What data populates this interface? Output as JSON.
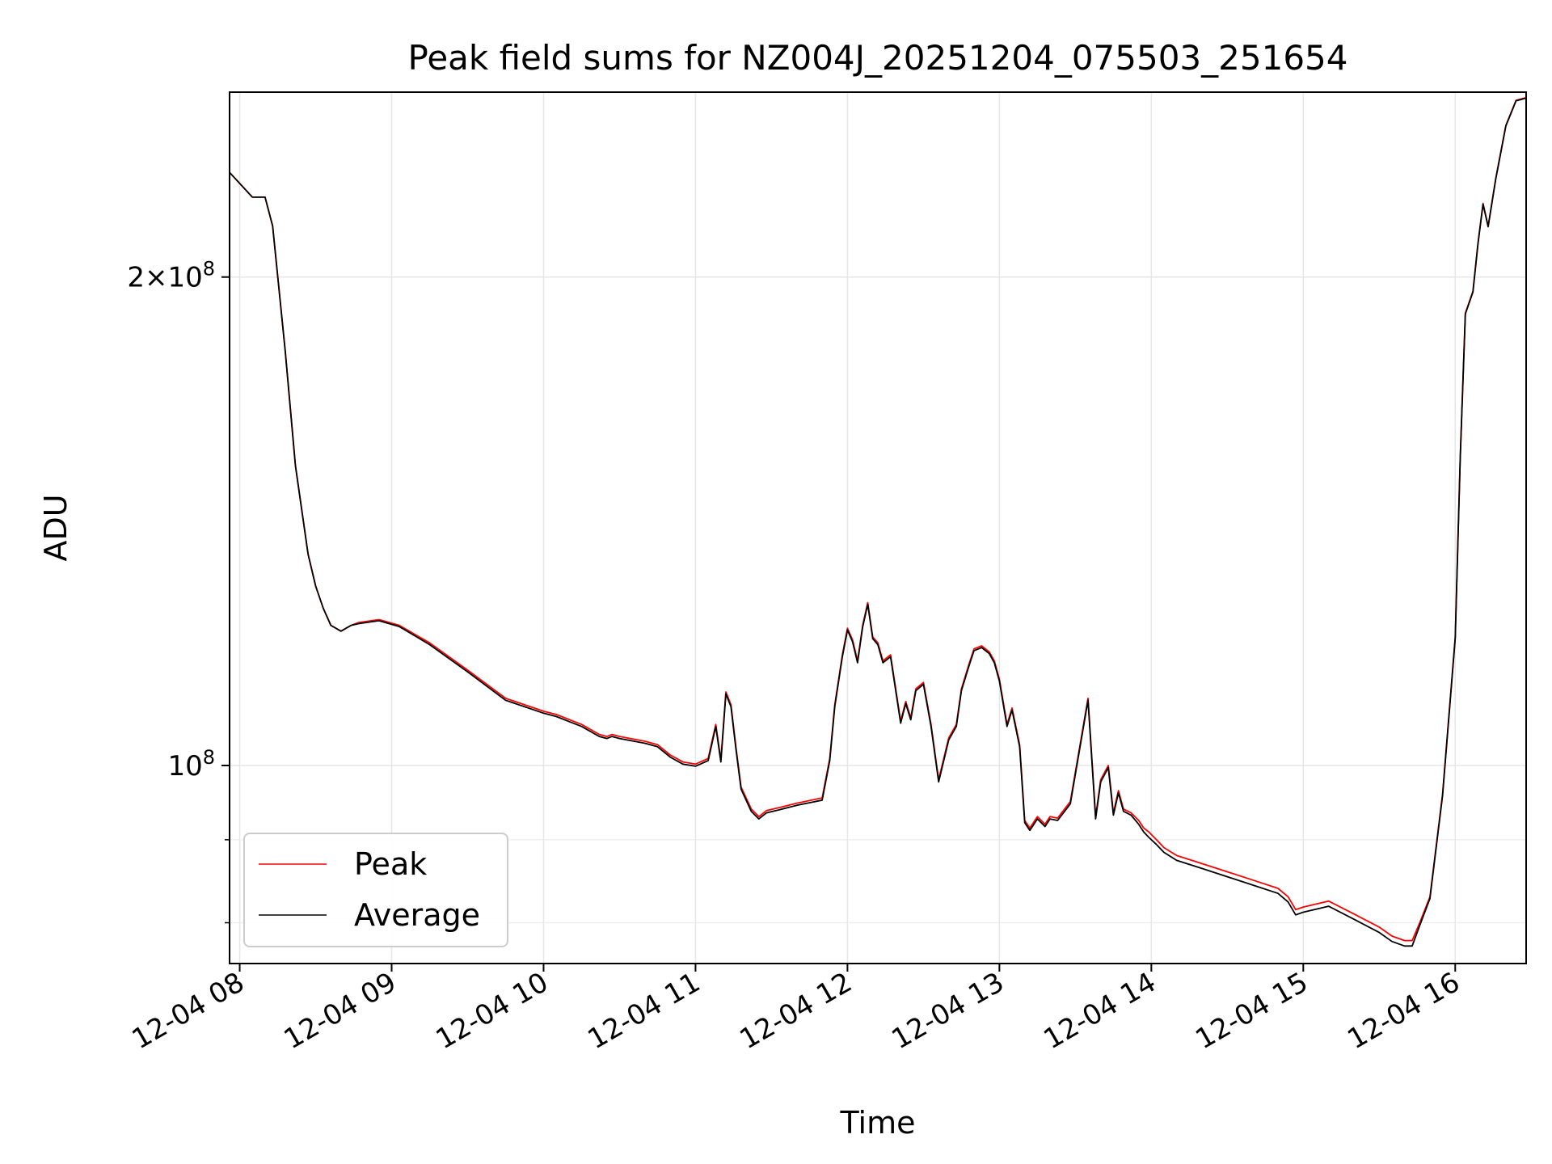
{
  "chart_data": {
    "type": "line",
    "title": "Peak field sums for NZ004J_20251204_075503_251654",
    "xlabel": "Time",
    "ylabel": "ADU",
    "yscale": "log",
    "ylim": [
      75500000,
      260000000
    ],
    "xlim": [
      "2025-12-04T07:56:00",
      "2025-12-04T16:28:00"
    ],
    "x_ticks": [
      "2025-12-04T08:00",
      "2025-12-04T09:00",
      "2025-12-04T10:00",
      "2025-12-04T11:00",
      "2025-12-04T12:00",
      "2025-12-04T13:00",
      "2025-12-04T14:00",
      "2025-12-04T15:00",
      "2025-12-04T16:00"
    ],
    "x_tick_labels": [
      "12-04 08",
      "12-04 09",
      "12-04 10",
      "12-04 11",
      "12-04 12",
      "12-04 13",
      "12-04 14",
      "12-04 15",
      "12-04 16"
    ],
    "y_ticks": [
      100000000,
      200000000
    ],
    "y_tick_labels": [
      "10^8",
      "2×10^8"
    ],
    "y_minor_ticks": [
      80000000,
      90000000
    ],
    "grid": true,
    "legend_position": "lower-left",
    "x": [
      "2025-12-04T07:56",
      "2025-12-04T08:05",
      "2025-12-04T08:10",
      "2025-12-04T08:13",
      "2025-12-04T08:18",
      "2025-12-04T08:22",
      "2025-12-04T08:27",
      "2025-12-04T08:30",
      "2025-12-04T08:33",
      "2025-12-04T08:36",
      "2025-12-04T08:40",
      "2025-12-04T08:44",
      "2025-12-04T08:47",
      "2025-12-04T08:55",
      "2025-12-04T09:03",
      "2025-12-04T09:15",
      "2025-12-04T09:30",
      "2025-12-04T09:45",
      "2025-12-04T10:00",
      "2025-12-04T10:05",
      "2025-12-04T10:15",
      "2025-12-04T10:22",
      "2025-12-04T10:25",
      "2025-12-04T10:27",
      "2025-12-04T10:30",
      "2025-12-04T10:40",
      "2025-12-04T10:45",
      "2025-12-04T10:50",
      "2025-12-04T10:55",
      "2025-12-04T11:00",
      "2025-12-04T11:05",
      "2025-12-04T11:08",
      "2025-12-04T11:10",
      "2025-12-04T11:12",
      "2025-12-04T11:14",
      "2025-12-04T11:16",
      "2025-12-04T11:18",
      "2025-12-04T11:22",
      "2025-12-04T11:25",
      "2025-12-04T11:28",
      "2025-12-04T11:33",
      "2025-12-04T11:40",
      "2025-12-04T11:50",
      "2025-12-04T11:53",
      "2025-12-04T11:55",
      "2025-12-04T11:58",
      "2025-12-04T12:00",
      "2025-12-04T12:02",
      "2025-12-04T12:04",
      "2025-12-04T12:06",
      "2025-12-04T12:08",
      "2025-12-04T12:10",
      "2025-12-04T12:12",
      "2025-12-04T12:14",
      "2025-12-04T12:17",
      "2025-12-04T12:21",
      "2025-12-04T12:23",
      "2025-12-04T12:25",
      "2025-12-04T12:27",
      "2025-12-04T12:30",
      "2025-12-04T12:33",
      "2025-12-04T12:36",
      "2025-12-04T12:40",
      "2025-12-04T12:43",
      "2025-12-04T12:45",
      "2025-12-04T12:48",
      "2025-12-04T12:50",
      "2025-12-04T12:53",
      "2025-12-04T12:56",
      "2025-12-04T12:58",
      "2025-12-04T13:00",
      "2025-12-04T13:03",
      "2025-12-04T13:05",
      "2025-12-04T13:08",
      "2025-12-04T13:10",
      "2025-12-04T13:12",
      "2025-12-04T13:15",
      "2025-12-04T13:18",
      "2025-12-04T13:20",
      "2025-12-04T13:23",
      "2025-12-04T13:28",
      "2025-12-04T13:35",
      "2025-12-04T13:38",
      "2025-12-04T13:40",
      "2025-12-04T13:43",
      "2025-12-04T13:45",
      "2025-12-04T13:47",
      "2025-12-04T13:49",
      "2025-12-04T13:52",
      "2025-12-04T13:55",
      "2025-12-04T13:57",
      "2025-12-04T13:59",
      "2025-12-04T14:02",
      "2025-12-04T14:05",
      "2025-12-04T14:10",
      "2025-12-04T14:20",
      "2025-12-04T14:30",
      "2025-12-04T14:40",
      "2025-12-04T14:50",
      "2025-12-04T14:54",
      "2025-12-04T14:57",
      "2025-12-04T15:00",
      "2025-12-04T15:10",
      "2025-12-04T15:20",
      "2025-12-04T15:30",
      "2025-12-04T15:35",
      "2025-12-04T15:40",
      "2025-12-04T15:43",
      "2025-12-04T15:46",
      "2025-12-04T15:50",
      "2025-12-04T15:55",
      "2025-12-04T16:00",
      "2025-12-04T16:02",
      "2025-12-04T16:04",
      "2025-12-04T16:07",
      "2025-12-04T16:09",
      "2025-12-04T16:11",
      "2025-12-04T16:13",
      "2025-12-04T16:16",
      "2025-12-04T16:20",
      "2025-12-04T16:24",
      "2025-12-04T16:28"
    ],
    "series": [
      {
        "name": "Peak",
        "color": "#ff0000",
        "values": [
          232000000,
          224000000,
          224000000,
          215000000,
          180000000,
          153000000,
          135000000,
          129000000,
          125000000,
          122000000,
          121000000,
          122000000,
          122500000,
          123000000,
          122000000,
          119000000,
          114500000,
          110000000,
          108000000,
          107500000,
          106000000,
          104500000,
          104200000,
          104500000,
          104200000,
          103500000,
          103000000,
          101500000,
          100500000,
          100200000,
          101000000,
          106000000,
          100800000,
          111000000,
          109000000,
          102500000,
          97000000,
          94000000,
          93000000,
          93800000,
          94200000,
          94800000,
          95500000,
          101000000,
          109000000,
          117000000,
          121500000,
          119500000,
          116000000,
          122000000,
          126000000,
          120000000,
          119000000,
          116000000,
          117000000,
          106500000,
          109500000,
          107000000,
          111500000,
          112500000,
          106000000,
          98000000,
          104000000,
          106000000,
          111500000,
          115500000,
          118000000,
          118500000,
          117500000,
          116000000,
          113000000,
          106000000,
          108500000,
          103000000,
          92500000,
          91500000,
          93000000,
          92000000,
          93000000,
          92800000,
          95000000,
          110000000,
          93000000,
          98000000,
          100000000,
          93500000,
          96500000,
          94000000,
          93500000,
          92500000,
          91500000,
          91000000,
          90000000,
          89000000,
          88000000,
          87000000,
          86000000,
          85000000,
          84000000,
          83000000,
          81500000,
          81800000,
          82500000,
          81000000,
          79500000,
          78500000,
          78000000,
          78000000,
          80000000,
          83000000,
          96000000,
          120000000,
          155000000,
          190000000,
          196000000,
          210000000,
          222000000,
          215000000,
          230000000,
          248000000,
          257000000,
          258000000
        ]
      },
      {
        "name": "Average",
        "color": "#000000",
        "values": [
          232000000,
          224000000,
          224000000,
          215000000,
          180000000,
          153000000,
          135000000,
          129000000,
          125000000,
          122000000,
          121000000,
          122000000,
          122300000,
          122800000,
          121800000,
          118700000,
          114200000,
          109700000,
          107700000,
          107200000,
          105700000,
          104200000,
          103900000,
          104200000,
          103900000,
          103200000,
          102700000,
          101200000,
          100200000,
          99900000,
          100700000,
          105700000,
          100500000,
          110700000,
          108700000,
          102200000,
          96700000,
          93700000,
          92700000,
          93500000,
          93900000,
          94500000,
          95200000,
          100700000,
          108700000,
          116700000,
          121200000,
          119200000,
          115700000,
          121700000,
          125700000,
          119700000,
          118700000,
          115700000,
          116700000,
          106200000,
          109200000,
          106700000,
          111200000,
          112200000,
          105700000,
          97700000,
          103700000,
          105700000,
          111200000,
          115200000,
          117700000,
          118200000,
          117200000,
          115700000,
          112700000,
          105700000,
          108200000,
          102700000,
          92200000,
          91200000,
          92700000,
          91700000,
          92700000,
          92500000,
          94700000,
          109700000,
          92700000,
          97700000,
          99700000,
          93200000,
          96200000,
          93700000,
          93200000,
          92000000,
          91000000,
          90300000,
          89400000,
          88400000,
          87400000,
          86400000,
          85400000,
          84400000,
          83400000,
          82400000,
          80900000,
          81200000,
          81900000,
          80400000,
          78900000,
          77900000,
          77400000,
          77400000,
          79700000,
          82800000,
          95800000,
          119800000,
          154800000,
          189800000,
          195800000,
          209800000,
          221800000,
          214800000,
          229800000,
          247800000,
          256800000,
          257800000
        ]
      }
    ]
  }
}
